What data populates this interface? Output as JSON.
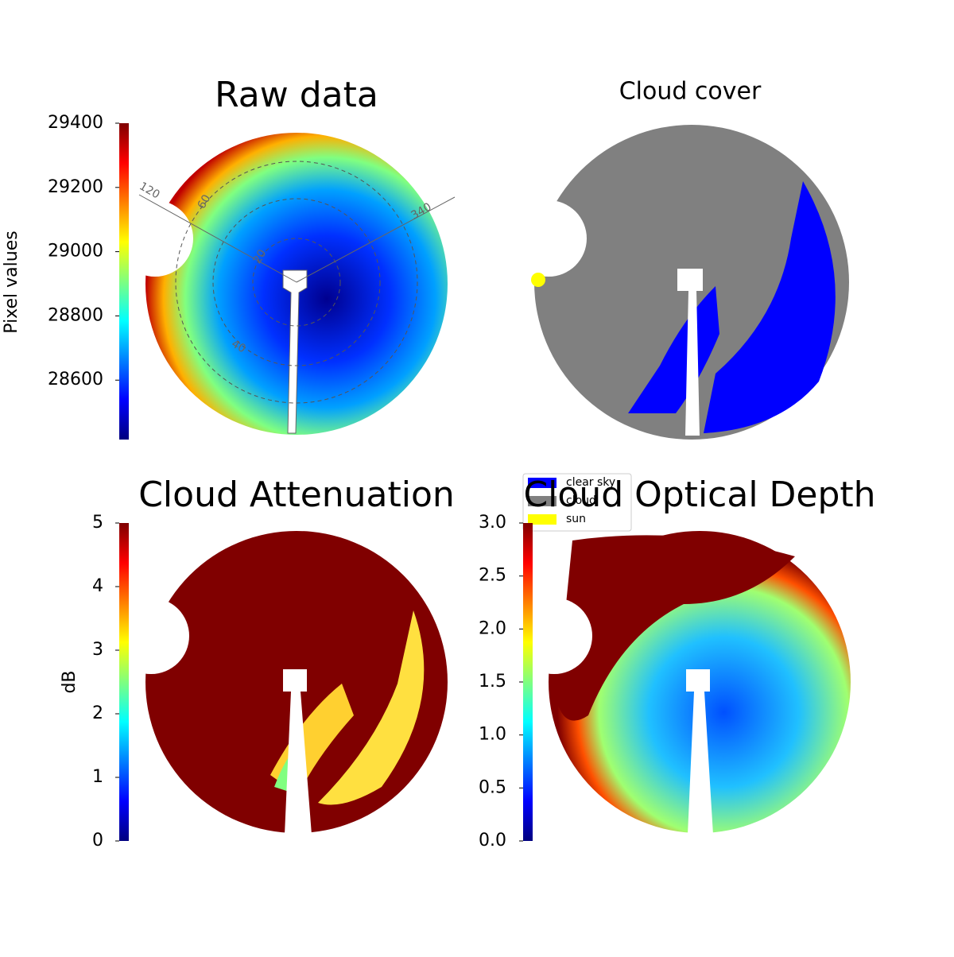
{
  "chart_data": [
    {
      "type": "heatmap",
      "title": "Raw data",
      "colormap": "jet",
      "colorbar": {
        "label": "Pixel values",
        "lim": [
          28415,
          29400
        ],
        "ticks": [
          28600,
          28800,
          29000,
          29200,
          29400
        ]
      },
      "polar_labels": [
        "20",
        "40",
        "60",
        "120",
        "340"
      ]
    },
    {
      "type": "heatmap",
      "title": "Cloud cover",
      "legend": [
        {
          "name": "clear sky",
          "color": "#0000ff"
        },
        {
          "name": "cloud",
          "color": "#808080"
        },
        {
          "name": "sun",
          "color": "#ffff00"
        }
      ]
    },
    {
      "type": "heatmap",
      "title": "Cloud Attenuation",
      "colormap": "jet",
      "colorbar": {
        "label": "dB",
        "lim": [
          0,
          5
        ],
        "ticks": [
          0,
          1,
          2,
          3,
          4,
          5
        ]
      }
    },
    {
      "type": "heatmap",
      "title": "Cloud Optical Depth",
      "colormap": "jet",
      "colorbar": {
        "lim": [
          0,
          3
        ],
        "ticks": [
          {
            "value": 0,
            "label": "0.0"
          },
          0.5,
          {
            "value": 1,
            "label": "1.0"
          },
          1.5,
          {
            "value": 2,
            "label": "2.0"
          },
          2.5,
          {
            "value": 3,
            "label": "3.0"
          }
        ]
      }
    }
  ]
}
